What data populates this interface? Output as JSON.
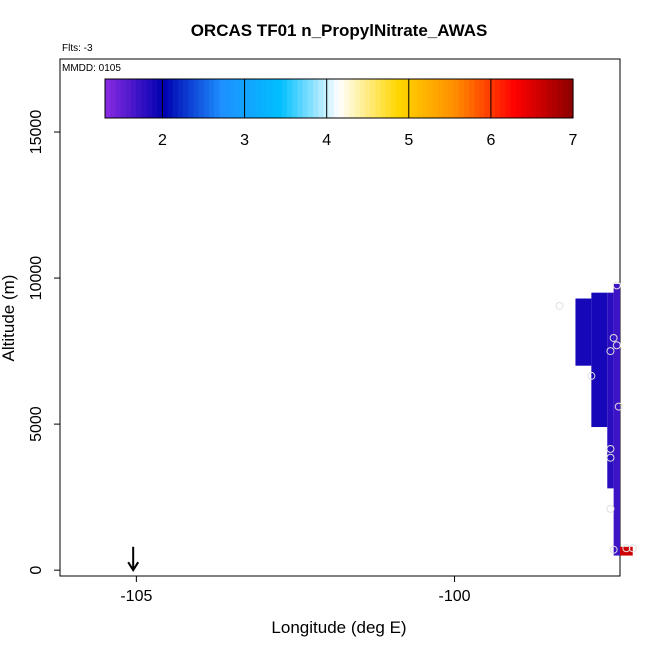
{
  "chart_data": {
    "type": "heatmap",
    "title": "ORCAS TF01 n_PropylNitrate_AWAS",
    "subtitle": "Flts: -3",
    "annotation": "MMDD: 0105",
    "xlabel": "Longitude (deg E)",
    "ylabel": "Altitude (m)",
    "xlim": [
      -106.2,
      -97.4
    ],
    "ylim": [
      -200,
      17500
    ],
    "x_ticks": [
      -105,
      -100
    ],
    "x_tick_labels": [
      "-105",
      "-100"
    ],
    "y_ticks": [
      0,
      5000,
      10000,
      15000
    ],
    "y_tick_labels": [
      "0",
      "5000",
      "10000",
      "15000"
    ],
    "colorbar": {
      "min": 1.3,
      "max": 7,
      "ticks": [
        2,
        3,
        4,
        5,
        6,
        7
      ],
      "tick_labels": [
        "2",
        "3",
        "4",
        "5",
        "6",
        "7"
      ],
      "colors": [
        "#8a2be2",
        "#0000b0",
        "#1e90ff",
        "#00bfff",
        "#ffffff",
        "#ffd700",
        "#ff8c00",
        "#ff0000",
        "#8b0000"
      ]
    },
    "cells": [
      {
        "x0": -98.1,
        "x1": -97.85,
        "y0": 7000,
        "y1": 9300,
        "v": 1.9
      },
      {
        "x0": -97.85,
        "x1": -97.6,
        "y0": 4900,
        "y1": 9500,
        "v": 1.9
      },
      {
        "x0": -97.6,
        "x1": -97.5,
        "y0": 2800,
        "y1": 9500,
        "v": 1.8
      },
      {
        "x0": -97.5,
        "x1": -97.4,
        "y0": 500,
        "y1": 9800,
        "v": 1.7
      },
      {
        "x0": -97.4,
        "x1": -97.2,
        "y0": 500,
        "y1": 800,
        "v": 6.6
      }
    ],
    "points": [
      {
        "lon": -98.35,
        "alt": 9050
      },
      {
        "lon": -97.85,
        "alt": 6650
      },
      {
        "lon": -97.55,
        "alt": 7500
      },
      {
        "lon": -97.5,
        "alt": 7950
      },
      {
        "lon": -97.45,
        "alt": 7700
      },
      {
        "lon": -97.42,
        "alt": 5600
      },
      {
        "lon": -97.45,
        "alt": 9750
      },
      {
        "lon": -97.55,
        "alt": 4150
      },
      {
        "lon": -97.55,
        "alt": 3850
      },
      {
        "lon": -97.55,
        "alt": 2100
      },
      {
        "lon": -97.5,
        "alt": 700
      },
      {
        "lon": -97.3,
        "alt": 750
      },
      {
        "lon": -97.2,
        "alt": 750
      }
    ],
    "arrow": {
      "lon": -105.05,
      "alt_top": 800,
      "alt_bottom": 0
    }
  }
}
